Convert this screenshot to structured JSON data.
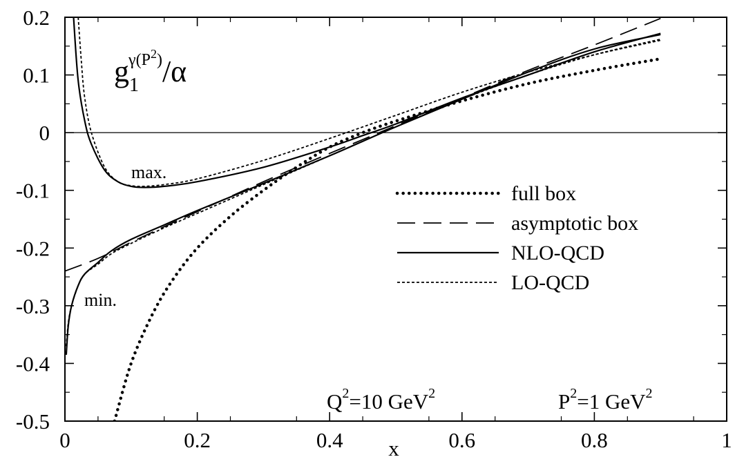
{
  "chart_data": {
    "type": "line",
    "title_parts": {
      "g": "g",
      "sub": "1",
      "sup": "γ(P",
      "sup2": "2",
      "sup_close": ")",
      "over": "/α"
    },
    "xlabel": "x",
    "ylabel": "",
    "xlim": [
      0,
      1
    ],
    "ylim": [
      -0.5,
      0.2
    ],
    "x_ticks": [
      {
        "value": 0,
        "label": "0"
      },
      {
        "value": 0.2,
        "label": "0.2"
      },
      {
        "value": 0.4,
        "label": "0.4"
      },
      {
        "value": 0.6,
        "label": "0.6"
      },
      {
        "value": 0.8,
        "label": "0.8"
      },
      {
        "value": 1,
        "label": "1"
      }
    ],
    "y_ticks": [
      {
        "value": 0.2,
        "label": "0.2"
      },
      {
        "value": 0.1,
        "label": "0.1"
      },
      {
        "value": 0,
        "label": "0"
      },
      {
        "value": -0.1,
        "label": "-0.1"
      },
      {
        "value": -0.2,
        "label": "-0.2"
      },
      {
        "value": -0.3,
        "label": "-0.3"
      },
      {
        "value": -0.4,
        "label": "-0.4"
      },
      {
        "value": -0.5,
        "label": "-0.5"
      }
    ],
    "grid": false,
    "zero_line": true,
    "legend_position": "right-center",
    "annotations": {
      "max": "max.",
      "min": "min.",
      "q2": {
        "base": "Q",
        "sup": "2",
        "rest": "=10 GeV",
        "sup2": "2"
      },
      "p2": {
        "base": "P",
        "sup": "2",
        "rest": "=1 GeV",
        "sup2": "2"
      }
    },
    "series": [
      {
        "name": "full box",
        "style": "dotted",
        "x": [
          0.075,
          0.1,
          0.13,
          0.16,
          0.2,
          0.25,
          0.3,
          0.35,
          0.4,
          0.45,
          0.5,
          0.6,
          0.7,
          0.8,
          0.9
        ],
        "y": [
          -0.5,
          -0.4,
          -0.32,
          -0.26,
          -0.2,
          -0.145,
          -0.1,
          -0.06,
          -0.025,
          0.0,
          0.02,
          0.055,
          0.085,
          0.108,
          0.128
        ]
      },
      {
        "name": "asymptotic box",
        "style": "dashed",
        "x": [
          0,
          0.05,
          0.1,
          0.15,
          0.2,
          0.3,
          0.4,
          0.45,
          0.5,
          0.6,
          0.7,
          0.8,
          0.9
        ],
        "y": [
          -0.24,
          -0.218,
          -0.19,
          -0.163,
          -0.137,
          -0.085,
          -0.036,
          -0.012,
          0.012,
          0.06,
          0.108,
          0.152,
          0.198
        ]
      },
      {
        "name": "NLO-QCD",
        "style": "solid",
        "curves": [
          {
            "label": "max.",
            "x": [
              0.013,
              0.02,
              0.03,
              0.04,
              0.06,
              0.08,
              0.1,
              0.12,
              0.15,
              0.2,
              0.3,
              0.4,
              0.45,
              0.5,
              0.6,
              0.7,
              0.8,
              0.9
            ],
            "y": [
              0.2,
              0.09,
              0.02,
              -0.02,
              -0.065,
              -0.085,
              -0.093,
              -0.095,
              -0.093,
              -0.085,
              -0.06,
              -0.025,
              -0.005,
              0.015,
              0.06,
              0.1,
              0.14,
              0.172
            ]
          },
          {
            "label": "min.",
            "x": [
              0.002,
              0.005,
              0.01,
              0.02,
              0.03,
              0.05,
              0.07,
              0.1,
              0.15,
              0.2,
              0.3,
              0.4,
              0.45,
              0.5,
              0.6,
              0.7,
              0.8,
              0.9
            ],
            "y": [
              -0.385,
              -0.335,
              -0.3,
              -0.265,
              -0.245,
              -0.225,
              -0.205,
              -0.185,
              -0.16,
              -0.135,
              -0.088,
              -0.04,
              -0.015,
              0.01,
              0.058,
              0.105,
              0.145,
              0.17
            ]
          }
        ]
      },
      {
        "name": "LO-QCD",
        "style": "short-dashed",
        "curves": [
          {
            "label": "max.",
            "x": [
              0.02,
              0.025,
              0.03,
              0.04,
              0.06,
              0.08,
              0.1,
              0.12,
              0.15,
              0.2,
              0.3,
              0.4,
              0.5,
              0.6,
              0.7,
              0.8,
              0.9
            ],
            "y": [
              0.2,
              0.12,
              0.06,
              0.0,
              -0.06,
              -0.085,
              -0.092,
              -0.093,
              -0.09,
              -0.08,
              -0.048,
              -0.01,
              0.03,
              0.07,
              0.105,
              0.135,
              0.16
            ]
          },
          {
            "label": "min.",
            "x": [
              0.002,
              0.005,
              0.01,
              0.02,
              0.03,
              0.05,
              0.07,
              0.1,
              0.15,
              0.2,
              0.3,
              0.4,
              0.5,
              0.6,
              0.7,
              0.8,
              0.9
            ],
            "y": [
              -0.37,
              -0.33,
              -0.3,
              -0.265,
              -0.245,
              -0.228,
              -0.21,
              -0.192,
              -0.165,
              -0.14,
              -0.09,
              -0.04,
              0.01,
              0.058,
              0.1,
              0.135,
              0.162
            ]
          }
        ]
      }
    ]
  }
}
